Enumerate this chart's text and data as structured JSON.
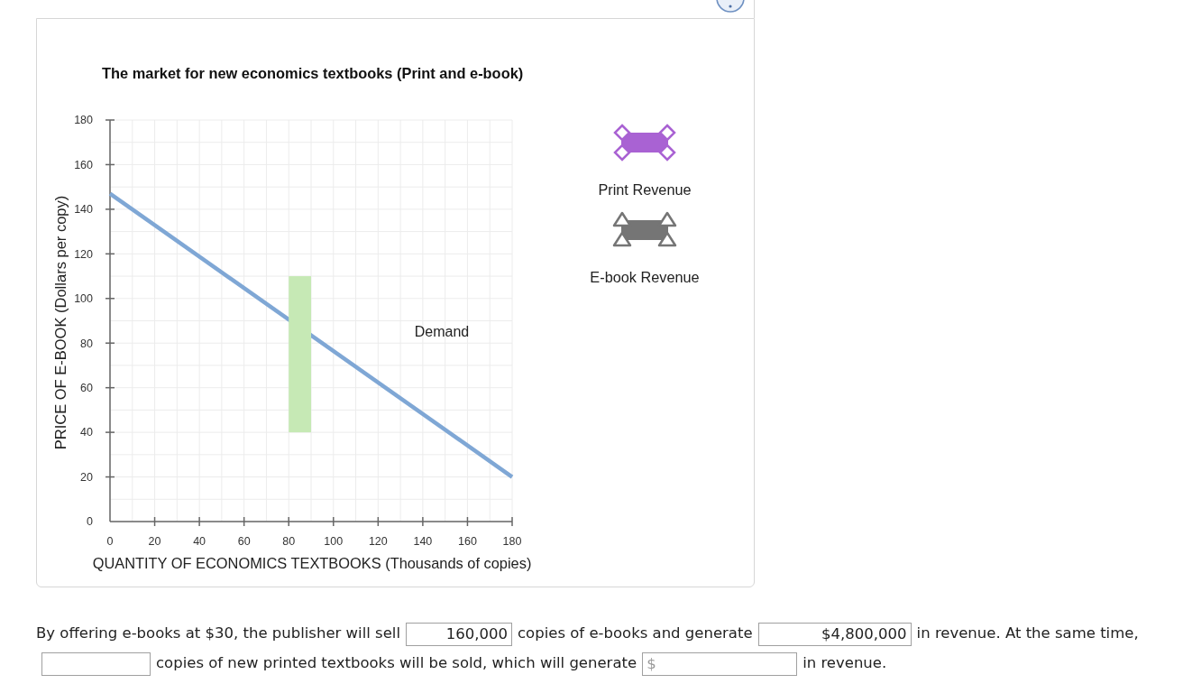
{
  "chart_data": {
    "type": "line",
    "title": "The market for new economics textbooks (Print and e-book)",
    "xlabel": "QUANTITY OF ECONOMICS TEXTBOOKS (Thousands of copies)",
    "ylabel": "PRICE OF E-BOOK (Dollars per copy)",
    "series": [
      {
        "name": "Demand",
        "color": "#7fa7d5",
        "x": [
          0,
          180
        ],
        "values": [
          147,
          20
        ]
      },
      {
        "type": "bar",
        "color": "#c6e9b5",
        "x": [
          85
        ],
        "base": [
          40
        ],
        "values": [
          70
        ]
      }
    ],
    "xlim": [
      0,
      180
    ],
    "ylim": [
      0,
      180
    ],
    "xticks": [
      0,
      {
        "value": 10,
        "label": null
      },
      20,
      {
        "value": 30,
        "label": null
      },
      40,
      {
        "value": 50,
        "label": null
      },
      60,
      {
        "value": 70,
        "label": null
      },
      80,
      {
        "value": 90,
        "label": null
      },
      100,
      {
        "value": 110,
        "label": null
      },
      120,
      {
        "value": 130,
        "label": null
      },
      140,
      {
        "value": 150,
        "label": null
      },
      160,
      {
        "value": 170,
        "label": null
      },
      180
    ],
    "yticks": [
      0,
      {
        "value": 10,
        "label": null
      },
      20,
      {
        "value": 30,
        "label": null
      },
      40,
      {
        "value": 50,
        "label": null
      },
      60,
      {
        "value": 70,
        "label": null
      },
      80,
      {
        "value": 90,
        "label": null
      },
      100,
      {
        "value": 110,
        "label": null
      },
      120,
      {
        "value": 130,
        "label": null
      },
      140,
      {
        "value": 150,
        "label": null
      },
      160,
      {
        "value": 170,
        "label": null
      },
      180
    ],
    "grid": true,
    "annotations": [
      "Print Revenue",
      "E-book Revenue",
      "By offering e-books at $30, the publisher will sell",
      "160,000",
      "copies of e-books and generate",
      "$4,800,000",
      "in revenue. At the same time,",
      "copies of new printed textbooks will be sold, which will generate",
      "$",
      "in revenue."
    ]
  }
}
